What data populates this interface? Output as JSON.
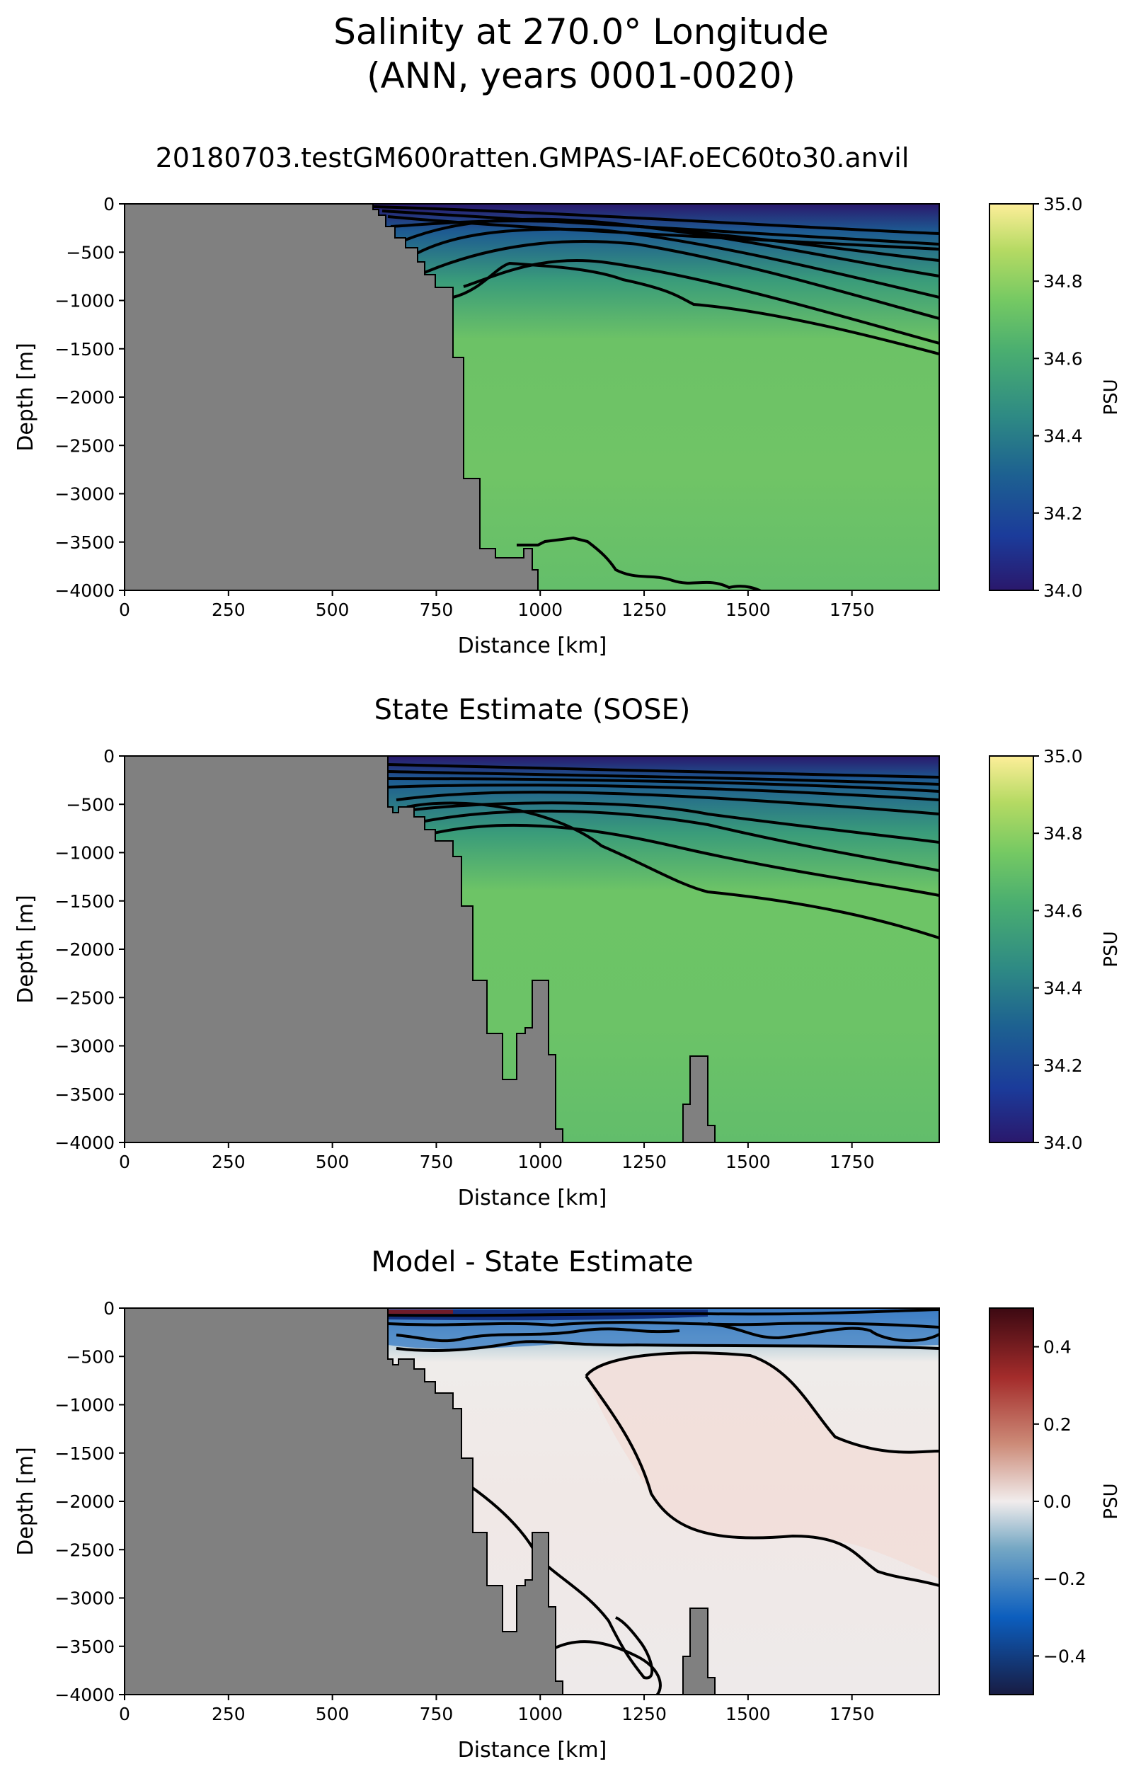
{
  "figure": {
    "title_line1": "Salinity at 270.0° Longitude",
    "title_line2": "(ANN, years 0001-0020)"
  },
  "chart_data": [
    {
      "type": "heatmap",
      "title": "20180703.testGM600ratten.GMPAS-IAF.oEC60to30.anvil",
      "xlabel": "Distance [km]",
      "ylabel": "Depth [m]",
      "xlim": [
        0,
        1960
      ],
      "ylim": [
        -4000,
        0
      ],
      "xticks": [
        0,
        250,
        500,
        750,
        1000,
        1250,
        1500,
        1750
      ],
      "yticks": [
        0,
        -500,
        -1000,
        -1500,
        -2000,
        -2500,
        -3000,
        -3500,
        -4000
      ],
      "colorbar": {
        "label": "PSU",
        "range": [
          34.0,
          35.0
        ],
        "ticks": [
          "34.0",
          "34.2",
          "34.4",
          "34.6",
          "34.8",
          "35.0"
        ],
        "colormap": "haline"
      },
      "colormap_stops": [
        "#2a186c",
        "#1b3b9a",
        "#1d6191",
        "#2e8a84",
        "#4aae70",
        "#75c963",
        "#b5da63",
        "#fdee99"
      ],
      "land_color": "#808080",
      "field_values": {
        "surface": 34.0,
        "upper": 34.45,
        "deep": 34.7
      },
      "contour_note": "black salinity contours"
    },
    {
      "type": "heatmap",
      "title": "State Estimate (SOSE)",
      "xlabel": "Distance [km]",
      "ylabel": "Depth [m]",
      "xlim": [
        0,
        1960
      ],
      "ylim": [
        -4000,
        0
      ],
      "xticks": [
        0,
        250,
        500,
        750,
        1000,
        1250,
        1500,
        1750
      ],
      "yticks": [
        0,
        -500,
        -1000,
        -1500,
        -2000,
        -2500,
        -3000,
        -3500,
        -4000
      ],
      "colorbar": {
        "label": "PSU",
        "range": [
          34.0,
          35.0
        ],
        "ticks": [
          "34.0",
          "34.2",
          "34.4",
          "34.6",
          "34.8",
          "35.0"
        ],
        "colormap": "haline"
      },
      "colormap_stops": [
        "#2a186c",
        "#1b3b9a",
        "#1d6191",
        "#2e8a84",
        "#4aae70",
        "#75c963",
        "#b5da63",
        "#fdee99"
      ],
      "land_color": "#808080",
      "field_values": {
        "surface": 34.0,
        "upper": 34.45,
        "deep": 34.72
      },
      "contour_note": "black salinity contours"
    },
    {
      "type": "heatmap",
      "title": "Model - State Estimate",
      "xlabel": "Distance [km]",
      "ylabel": "Depth [m]",
      "xlim": [
        0,
        1960
      ],
      "ylim": [
        -4000,
        0
      ],
      "xticks": [
        0,
        250,
        500,
        750,
        1000,
        1250,
        1500,
        1750
      ],
      "yticks": [
        0,
        -500,
        -1000,
        -1500,
        -2000,
        -2500,
        -3000,
        -3500,
        -4000
      ],
      "colorbar": {
        "label": "PSU",
        "range": [
          -0.5,
          0.5
        ],
        "ticks": [
          "−0.4",
          "−0.2",
          "0.0",
          "0.2",
          "0.4"
        ],
        "colormap": "balance"
      },
      "colormap_stops": [
        "#181c43",
        "#0c5ebe",
        "#76a8c4",
        "#f1ecec",
        "#cc8a77",
        "#a42c2b",
        "#3c0912"
      ],
      "land_color": "#808080",
      "field_values": {
        "surface": -0.3,
        "interior": 0.02,
        "deep": -0.01
      },
      "contour_note": "black difference contours"
    }
  ]
}
